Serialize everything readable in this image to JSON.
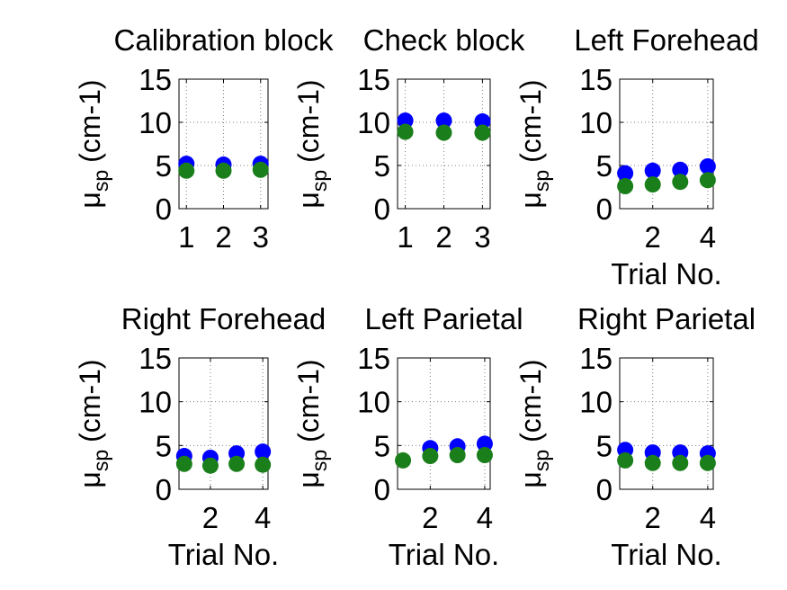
{
  "chart_data": [
    {
      "type": "scatter",
      "title": "Calibration block",
      "xlabel": "",
      "ylabel_symbol": "μ",
      "ylabel_subscript": "sp",
      "ylabel_unit": "(cm-1)",
      "xlim": [
        0.8,
        3.2
      ],
      "ylim": [
        0,
        15
      ],
      "xticks": [
        1,
        2,
        3
      ],
      "yticks": [
        0,
        5,
        10,
        15
      ],
      "grid": true,
      "series": [
        {
          "color": "#0000ff",
          "x": [
            1,
            2,
            3
          ],
          "y": [
            5.2,
            5.1,
            5.2
          ]
        },
        {
          "color": "#1a7f1a",
          "x": [
            1,
            2,
            3
          ],
          "y": [
            4.4,
            4.4,
            4.5
          ]
        }
      ]
    },
    {
      "type": "scatter",
      "title": "Check block",
      "xlabel": "",
      "ylabel_symbol": "μ",
      "ylabel_subscript": "sp",
      "ylabel_unit": "(cm-1)",
      "xlim": [
        0.8,
        3.2
      ],
      "ylim": [
        0,
        15
      ],
      "xticks": [
        1,
        2,
        3
      ],
      "yticks": [
        0,
        5,
        10,
        15
      ],
      "grid": true,
      "series": [
        {
          "color": "#0000ff",
          "x": [
            1,
            2,
            3
          ],
          "y": [
            10.2,
            10.2,
            10.1
          ]
        },
        {
          "color": "#1a7f1a",
          "x": [
            1,
            2,
            3
          ],
          "y": [
            8.9,
            8.8,
            8.8
          ]
        }
      ]
    },
    {
      "type": "scatter",
      "title": "Left Forehead",
      "xlabel": "Trial No.",
      "ylabel_symbol": "μ",
      "ylabel_subscript": "sp",
      "ylabel_unit": "(cm-1)",
      "xlim": [
        0.8,
        4.2
      ],
      "ylim": [
        0,
        15
      ],
      "xticks": [
        2,
        4
      ],
      "yticks": [
        0,
        5,
        10,
        15
      ],
      "grid": true,
      "series": [
        {
          "color": "#0000ff",
          "x": [
            1,
            2,
            3,
            4
          ],
          "y": [
            4.1,
            4.4,
            4.5,
            4.9
          ]
        },
        {
          "color": "#1a7f1a",
          "x": [
            1,
            2,
            3,
            4
          ],
          "y": [
            2.6,
            2.8,
            3.1,
            3.3
          ]
        }
      ]
    },
    {
      "type": "scatter",
      "title": "Right Forehead",
      "xlabel": "Trial No.",
      "ylabel_symbol": "μ",
      "ylabel_subscript": "sp",
      "ylabel_unit": "(cm-1)",
      "xlim": [
        0.8,
        4.2
      ],
      "ylim": [
        0,
        15
      ],
      "xticks": [
        2,
        4
      ],
      "yticks": [
        0,
        5,
        10,
        15
      ],
      "grid": true,
      "series": [
        {
          "color": "#0000ff",
          "x": [
            1,
            2,
            3,
            4
          ],
          "y": [
            3.8,
            3.6,
            4.1,
            4.3
          ]
        },
        {
          "color": "#1a7f1a",
          "x": [
            1,
            2,
            3,
            4
          ],
          "y": [
            2.9,
            2.7,
            2.9,
            2.8
          ]
        }
      ]
    },
    {
      "type": "scatter",
      "title": "Left Parietal",
      "xlabel": "Trial No.",
      "ylabel_symbol": "μ",
      "ylabel_subscript": "sp",
      "ylabel_unit": "(cm-1)",
      "xlim": [
        0.8,
        4.2
      ],
      "ylim": [
        0,
        15
      ],
      "xticks": [
        2,
        4
      ],
      "yticks": [
        0,
        5,
        10,
        15
      ],
      "grid": true,
      "series": [
        {
          "color": "#0000ff",
          "x": [
            2,
            3,
            4
          ],
          "y": [
            4.7,
            4.9,
            5.2
          ]
        },
        {
          "color": "#1a7f1a",
          "x": [
            1,
            2,
            3,
            4
          ],
          "y": [
            3.3,
            3.8,
            3.9,
            3.9
          ]
        }
      ]
    },
    {
      "type": "scatter",
      "title": "Right Parietal",
      "xlabel": "Trial No.",
      "ylabel_symbol": "μ",
      "ylabel_subscript": "sp",
      "ylabel_unit": "(cm-1)",
      "xlim": [
        0.8,
        4.2
      ],
      "ylim": [
        0,
        15
      ],
      "xticks": [
        2,
        4
      ],
      "yticks": [
        0,
        5,
        10,
        15
      ],
      "grid": true,
      "series": [
        {
          "color": "#0000ff",
          "x": [
            1,
            2,
            3,
            4
          ],
          "y": [
            4.5,
            4.2,
            4.2,
            4.1
          ]
        },
        {
          "color": "#1a7f1a",
          "x": [
            1,
            2,
            3,
            4
          ],
          "y": [
            3.3,
            3.0,
            3.0,
            3.0
          ]
        }
      ]
    }
  ]
}
